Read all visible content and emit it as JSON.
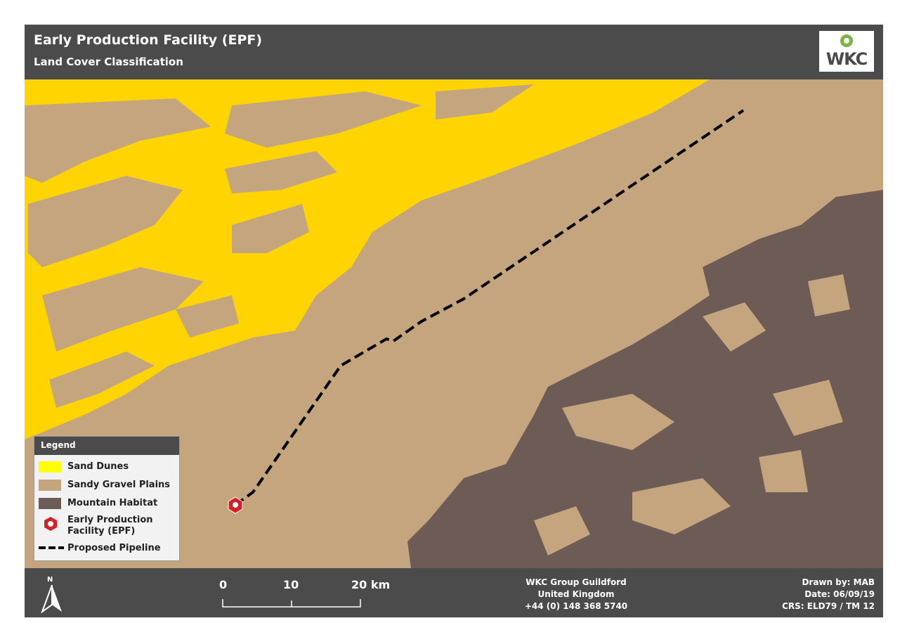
{
  "header": {
    "title": "Early Production Facility (EPF)",
    "subtitle": "Land Cover Classification",
    "logo": "WKC"
  },
  "legend": {
    "title": "Legend",
    "items": [
      "Sand Dunes",
      "Sandy Gravel Plains",
      "Mountain Habitat",
      "Early Production Facility (EPF)",
      "Proposed Pipeline"
    ]
  },
  "footer": {
    "north": "N",
    "scale": [
      "0",
      "10",
      "20 km"
    ],
    "address": [
      "WKC Group Guildford",
      "United Kingdom",
      "+44 (0) 148 368 5740"
    ],
    "credits": [
      "Drawn by: MAB",
      "Date: 06/09/19",
      "CRS: ELD79 / TM 12"
    ]
  }
}
